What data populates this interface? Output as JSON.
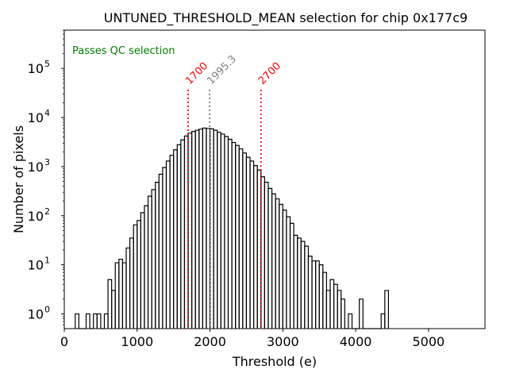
{
  "chart_data": {
    "type": "histogram",
    "title": "UNTUNED_THRESHOLD_MEAN selection for chip 0x177c9",
    "xlabel": "Threshold (e)",
    "ylabel": "Number of pixels",
    "xlim": [
      0,
      5775
    ],
    "ylim_log10": [
      -0.3,
      5.78
    ],
    "yscale": "log",
    "x_ticks": [
      0,
      1000,
      2000,
      3000,
      4000,
      5000
    ],
    "x_tick_labels": [
      "0",
      "1000",
      "2000",
      "3000",
      "4000",
      "5000"
    ],
    "y_ticks_exp": [
      0,
      1,
      2,
      3,
      4,
      5
    ],
    "y_tick_base": "10",
    "bin_width": 50,
    "bins_start": [
      150,
      200,
      250,
      300,
      350,
      400,
      450,
      500,
      550,
      600,
      650,
      700,
      750,
      800,
      850,
      900,
      950,
      1000,
      1050,
      1100,
      1150,
      1200,
      1250,
      1300,
      1350,
      1400,
      1450,
      1500,
      1550,
      1600,
      1650,
      1700,
      1750,
      1800,
      1850,
      1900,
      1950,
      2000,
      2050,
      2100,
      2150,
      2200,
      2250,
      2300,
      2350,
      2400,
      2450,
      2500,
      2550,
      2600,
      2650,
      2700,
      2750,
      2800,
      2850,
      2900,
      2950,
      3000,
      3050,
      3100,
      3150,
      3200,
      3250,
      3300,
      3350,
      3400,
      3450,
      3500,
      3550,
      3600,
      3650,
      3700,
      3750,
      3800,
      3850,
      3900,
      3950,
      4000,
      4050,
      4100,
      4150,
      4200,
      4250,
      4300,
      4350,
      4400
    ],
    "counts": [
      1,
      0,
      0,
      1,
      0,
      1,
      1,
      0,
      1,
      5,
      3,
      11,
      13,
      11,
      22,
      35,
      65,
      80,
      115,
      160,
      250,
      340,
      480,
      700,
      960,
      1300,
      1700,
      2200,
      2800,
      3500,
      4200,
      4800,
      5200,
      5500,
      5800,
      6100,
      6000,
      5900,
      5500,
      5000,
      4600,
      4100,
      3600,
      3100,
      2700,
      2300,
      1900,
      1550,
      1300,
      1050,
      850,
      620,
      480,
      360,
      280,
      220,
      170,
      130,
      95,
      70,
      40,
      35,
      30,
      24,
      15,
      12,
      12,
      10,
      7,
      3,
      5,
      4,
      3,
      2,
      0.3,
      1,
      0.4,
      0.3,
      2,
      0.3,
      0.5,
      0.7,
      0,
      0.3,
      1,
      3
    ],
    "counts_note": "values below 1 drawn at axis floor",
    "vlines": [
      {
        "x": 1700,
        "label": "1700",
        "color": "#ff0000"
      },
      {
        "x": 1995.3,
        "label": "1995.3",
        "color": "#808080"
      },
      {
        "x": 2700,
        "label": "2700",
        "color": "#ff0000"
      }
    ],
    "annotation": {
      "text": "Passes QC selection",
      "color": "#008000",
      "position": "top-left"
    },
    "line_color": "#000000",
    "grid": false,
    "legend": "none"
  }
}
